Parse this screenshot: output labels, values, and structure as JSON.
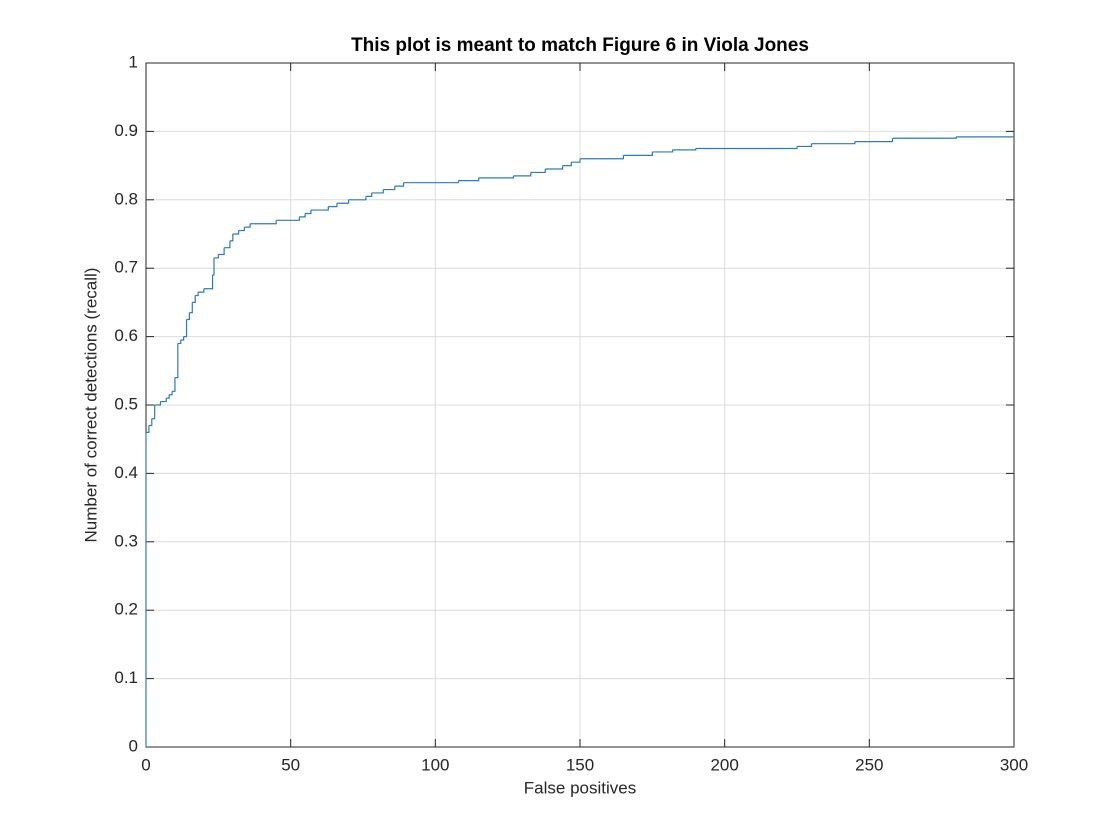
{
  "chart_data": {
    "type": "line",
    "step": "post",
    "title": "This plot is meant to match Figure 6 in Viola Jones",
    "xlabel": "False positives",
    "ylabel": "Number of correct detections (recall)",
    "x": [
      0,
      0,
      1,
      2,
      3,
      5,
      7,
      8,
      9,
      10,
      11,
      12,
      13,
      14,
      15,
      16,
      17,
      18,
      20,
      23,
      23.5,
      25,
      27,
      29,
      30,
      32,
      34,
      36,
      45,
      53,
      55,
      57,
      63,
      66,
      70,
      76,
      78,
      82,
      86,
      89,
      108,
      115,
      127,
      133,
      138,
      144,
      147,
      150,
      165,
      175,
      182,
      190,
      225,
      230,
      245,
      258,
      280,
      300
    ],
    "series": [
      {
        "color": "#2b7bba",
        "values": [
          0,
          0.46,
          0.47,
          0.48,
          0.5,
          0.505,
          0.51,
          0.515,
          0.52,
          0.54,
          0.59,
          0.595,
          0.6,
          0.625,
          0.635,
          0.65,
          0.66,
          0.665,
          0.67,
          0.69,
          0.715,
          0.72,
          0.73,
          0.74,
          0.75,
          0.755,
          0.76,
          0.765,
          0.77,
          0.775,
          0.78,
          0.785,
          0.79,
          0.795,
          0.8,
          0.805,
          0.81,
          0.815,
          0.82,
          0.825,
          0.828,
          0.832,
          0.835,
          0.84,
          0.845,
          0.85,
          0.855,
          0.86,
          0.865,
          0.87,
          0.873,
          0.875,
          0.878,
          0.882,
          0.885,
          0.89,
          0.892,
          0.892
        ]
      }
    ],
    "xlim": [
      0,
      300
    ],
    "xticks": [
      0,
      50,
      100,
      150,
      200,
      250,
      300
    ],
    "ylim": [
      0,
      1
    ],
    "yticks": [
      0,
      0.1,
      0.2,
      0.3,
      0.4,
      0.5,
      0.6,
      0.7,
      0.8,
      0.9,
      1
    ],
    "grid": true
  }
}
